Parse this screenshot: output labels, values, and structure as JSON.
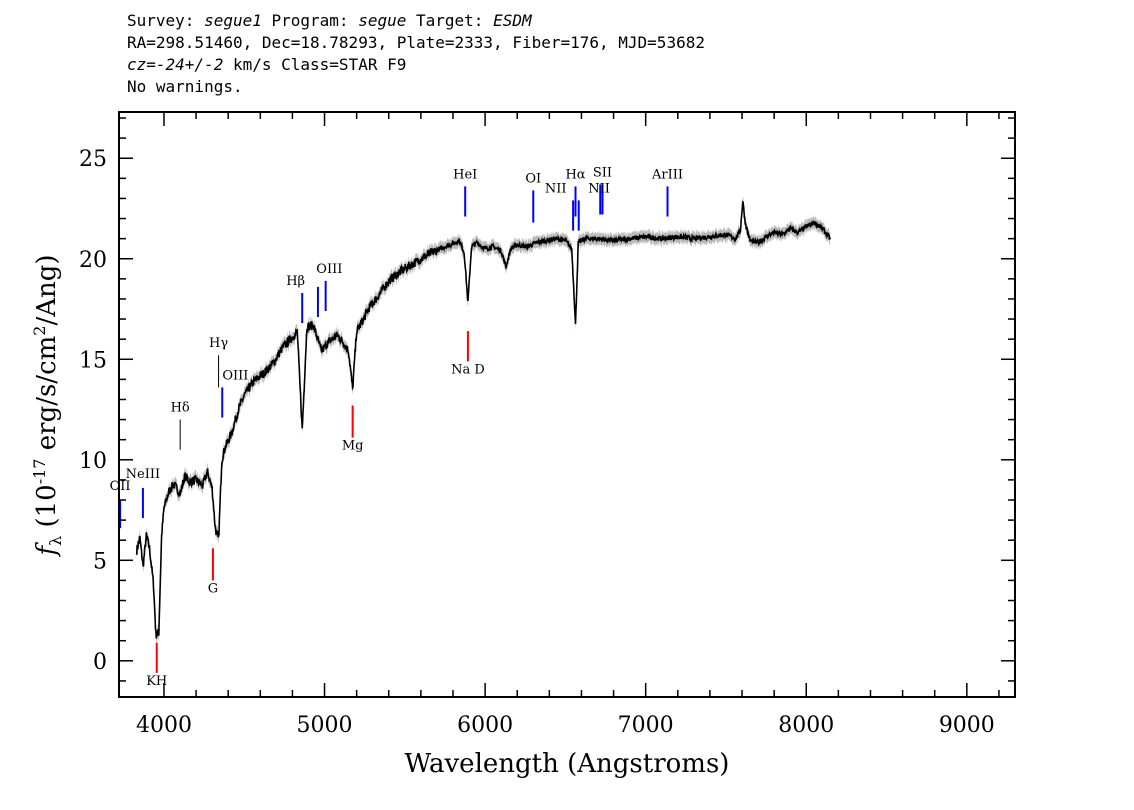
{
  "header": {
    "line1": {
      "survey_label": "Survey: ",
      "survey": "segue1",
      "program_label": " Program: ",
      "program": "segue",
      "target_label": " Target: ",
      "target": "ESDM"
    },
    "line2": "RA=298.51460, Dec=18.78293, Plate=2333, Fiber=176, MJD=53682",
    "line3": {
      "cz_label": "cz",
      "cz_value": "=-24+/-2",
      "rest": " km/s Class=STAR F9"
    },
    "line4": "No warnings."
  },
  "chart_data": {
    "type": "line",
    "xlabel": "Wavelength (Angstroms)",
    "ylabel": "f_λ (10^-17 erg/s/cm^2/Ang)",
    "xlim": [
      3720,
      9300
    ],
    "ylim": [
      -1.8,
      27.3
    ],
    "x_ticks": [
      4000,
      5000,
      6000,
      7000,
      8000,
      9000
    ],
    "y_ticks": [
      0,
      5,
      10,
      15,
      20,
      25
    ],
    "colors": {
      "spectrum": "#000000",
      "error": "#b8b8b8",
      "emission": "#0000ff",
      "absorption": "#ff0000",
      "marker": "#000000"
    },
    "series": [
      {
        "values_x": [
          3830,
          3850,
          3870,
          3890,
          3910,
          3935,
          3950,
          3968,
          3985,
          4000,
          4030,
          4060,
          4101,
          4130,
          4160,
          4200,
          4240,
          4270,
          4300,
          4320,
          4340,
          4360,
          4380,
          4420,
          4460,
          4500,
          4560,
          4620,
          4680,
          4740,
          4800,
          4830,
          4861,
          4890,
          4930,
          4980,
          5030,
          5080,
          5120,
          5150,
          5175,
          5200,
          5230,
          5280,
          5330,
          5400,
          5480,
          5560,
          5640,
          5720,
          5780,
          5840,
          5870,
          5893,
          5915,
          5950,
          6000,
          6050,
          6100,
          6130,
          6160,
          6200,
          6260,
          6320,
          6380,
          6440,
          6500,
          6540,
          6563,
          6580,
          6620,
          6700,
          6800,
          6900,
          7000,
          7100,
          7200,
          7300,
          7400,
          7500,
          7560,
          7590,
          7605,
          7620,
          7650,
          7700,
          7750,
          7800,
          7850,
          7900,
          7950,
          8000,
          8050,
          8100,
          8150
        ],
        "values_y": [
          5.5,
          6.1,
          4.7,
          6.2,
          5.6,
          3.8,
          1.3,
          1.4,
          6.2,
          7.6,
          8.4,
          8.8,
          8.3,
          9.2,
          8.9,
          9.0,
          8.7,
          9.4,
          8.6,
          6.6,
          6.0,
          10.0,
          10.6,
          11.3,
          12.4,
          13.2,
          13.9,
          14.3,
          14.8,
          15.6,
          16.1,
          16.4,
          11.5,
          16.6,
          16.7,
          15.4,
          15.9,
          16.2,
          15.8,
          15.4,
          13.5,
          16.4,
          16.8,
          17.6,
          18.1,
          18.9,
          19.4,
          19.8,
          20.2,
          20.5,
          20.7,
          20.9,
          20.3,
          17.8,
          20.6,
          20.8,
          20.5,
          20.6,
          20.4,
          19.6,
          20.5,
          20.7,
          20.6,
          20.8,
          20.9,
          21.0,
          20.9,
          20.5,
          16.7,
          20.8,
          21.0,
          21.0,
          20.9,
          21.0,
          21.1,
          21.0,
          21.1,
          21.0,
          21.1,
          21.2,
          21.0,
          21.4,
          22.9,
          21.8,
          20.9,
          20.8,
          21.1,
          21.3,
          21.2,
          21.5,
          21.3,
          21.6,
          21.8,
          21.5,
          21.0
        ]
      }
    ],
    "lines": [
      {
        "label": "KH",
        "x": 3955,
        "y1": -0.6,
        "y2": 0.9,
        "kind": "absorption"
      },
      {
        "label": "G",
        "x": 4305,
        "y1": 4.0,
        "y2": 5.6,
        "kind": "absorption"
      },
      {
        "label": "Mg",
        "x": 5175,
        "y1": 11.1,
        "y2": 12.7,
        "kind": "absorption"
      },
      {
        "label": "Na D",
        "x": 5893,
        "y1": 14.9,
        "y2": 16.4,
        "kind": "absorption"
      },
      {
        "label": "OII",
        "x": 3727,
        "y1": 6.6,
        "y2": 8.0,
        "kind": "emission"
      },
      {
        "label": "NeIII",
        "x": 3869,
        "y1": 7.1,
        "y2": 8.6,
        "kind": "emission"
      },
      {
        "label": "Hδ",
        "x": 4101,
        "y1": 10.5,
        "y2": 12.0,
        "kind": "marker"
      },
      {
        "label": "Hγ",
        "x": 4340,
        "y1": 13.6,
        "y2": 15.2,
        "kind": "marker"
      },
      {
        "label": "OIII",
        "x": 4363,
        "y1": 12.1,
        "y2": 13.6,
        "kind": "emission"
      },
      {
        "label": "Hβ",
        "x": 4861,
        "y1": 16.8,
        "y2": 18.3,
        "kind": "emission"
      },
      {
        "label": "OIII",
        "x": 4959,
        "y1": 17.1,
        "y2": 18.6,
        "kind": "emission"
      },
      {
        "label": "OIII",
        "x": 5007,
        "y1": 17.4,
        "y2": 18.9,
        "kind": "emission"
      },
      {
        "label": "HeI",
        "x": 5876,
        "y1": 22.1,
        "y2": 23.6,
        "kind": "emission"
      },
      {
        "label": "OI",
        "x": 6300,
        "y1": 21.8,
        "y2": 23.4,
        "kind": "emission"
      },
      {
        "label": "NII",
        "x": 6548,
        "y1": 21.4,
        "y2": 22.9,
        "kind": "emission"
      },
      {
        "label": "Hα",
        "x": 6563,
        "y1": 22.1,
        "y2": 23.6,
        "kind": "emission"
      },
      {
        "label": "NII",
        "x": 6583,
        "y1": 21.4,
        "y2": 22.9,
        "kind": "emission"
      },
      {
        "label": "SII",
        "x": 6717,
        "y1": 22.2,
        "y2": 23.7,
        "kind": "emission"
      },
      {
        "label": "SII",
        "x": 6731,
        "y1": 22.2,
        "y2": 23.7,
        "kind": "emission"
      },
      {
        "label": "ArIII",
        "x": 7136,
        "y1": 22.1,
        "y2": 23.6,
        "kind": "emission"
      }
    ],
    "visible_labels": [
      {
        "text": "KH",
        "x": 3955,
        "y": -1.2
      },
      {
        "text": "G",
        "x": 4305,
        "y": 3.4
      },
      {
        "text": "Mg",
        "x": 5175,
        "y": 10.5
      },
      {
        "text": "Na  D",
        "x": 5893,
        "y": 14.3
      },
      {
        "text": "OII",
        "x": 3727,
        "y": 8.5
      },
      {
        "text": "NeIII",
        "x": 3869,
        "y": 9.1
      },
      {
        "text": "Hδ",
        "x": 4101,
        "y": 12.4
      },
      {
        "text": "Hγ",
        "x": 4340,
        "y": 15.6
      },
      {
        "text": "OIII",
        "x": 4445,
        "y": 14.0
      },
      {
        "text": "Hβ",
        "x": 4820,
        "y": 18.7
      },
      {
        "text": "OIII",
        "x": 5030,
        "y": 19.3
      },
      {
        "text": "HeI",
        "x": 5876,
        "y": 24.0
      },
      {
        "text": "OI",
        "x": 6300,
        "y": 23.8
      },
      {
        "text": "NII",
        "x": 6440,
        "y": 23.3
      },
      {
        "text": "Hα",
        "x": 6563,
        "y": 24.0
      },
      {
        "text": "SII",
        "x": 6731,
        "y": 24.1
      },
      {
        "text": "NII",
        "x": 6710,
        "y": 23.3
      },
      {
        "text": "ArIII",
        "x": 7136,
        "y": 24.0
      }
    ]
  }
}
